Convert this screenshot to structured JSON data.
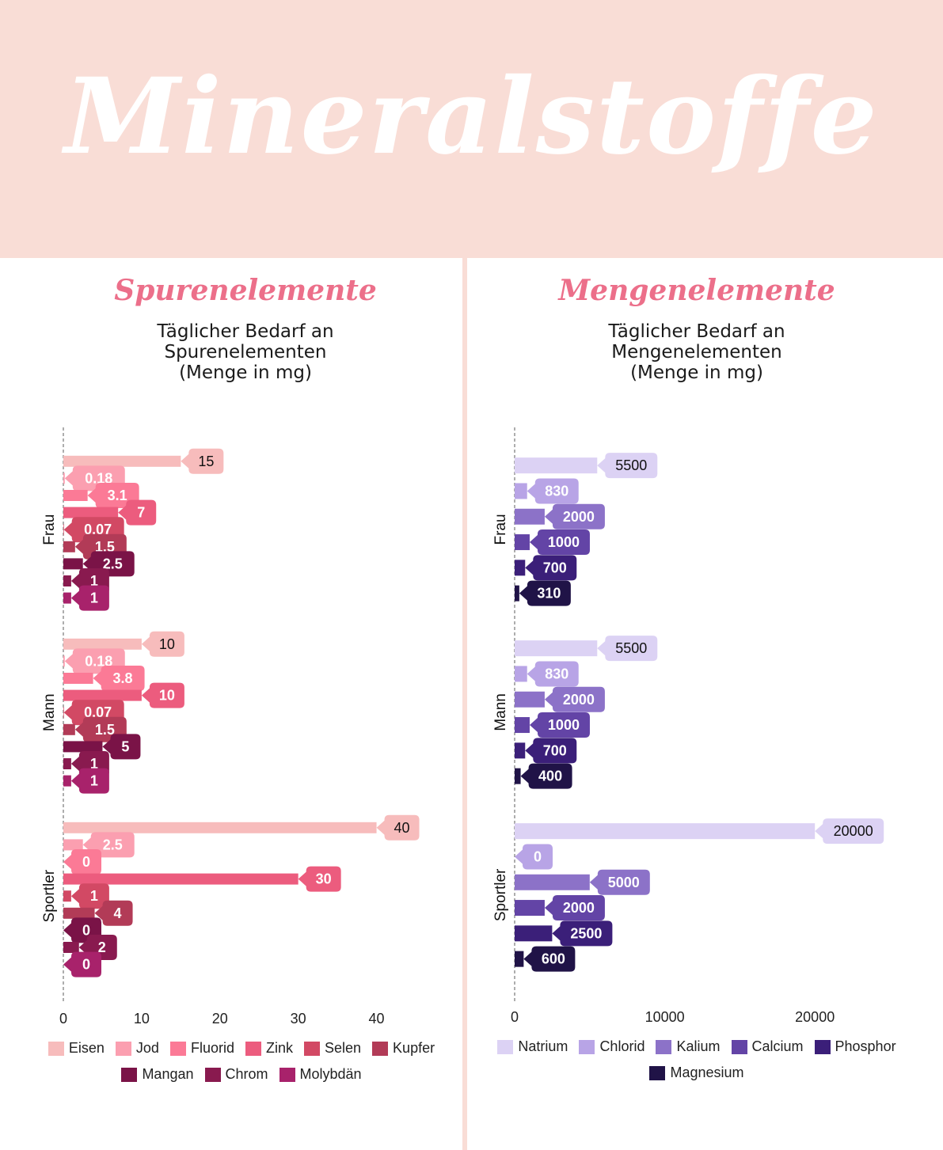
{
  "header": {
    "title": "Mineralstoffe"
  },
  "sections": [
    {
      "heading": "Spurenelemente",
      "title_lines": [
        "Täglicher Bedarf an",
        "Spurenelementen",
        "(Menge in mg)"
      ]
    },
    {
      "heading": "Mengenelemente",
      "title_lines": [
        "Täglicher Bedarf an",
        "Mengenelementen",
        "(Menge in mg)"
      ]
    }
  ],
  "chart_data": [
    {
      "type": "bar",
      "orientation": "horizontal",
      "groups": [
        "Frau",
        "Mann",
        "Sportler"
      ],
      "xlim": [
        0,
        45
      ],
      "xticks": [
        0,
        10,
        20,
        30,
        40
      ],
      "legend_position": "bottom",
      "series": [
        {
          "name": "Eisen",
          "color": "#f7bcbc",
          "values": [
            15,
            10,
            40
          ]
        },
        {
          "name": "Jod",
          "color": "#fb9fb0",
          "values": [
            0.18,
            0.18,
            2.5
          ]
        },
        {
          "name": "Fluorid",
          "color": "#fb7a96",
          "values": [
            3.1,
            3.8,
            0
          ]
        },
        {
          "name": "Zink",
          "color": "#ec5c7e",
          "values": [
            7,
            10,
            30
          ]
        },
        {
          "name": "Selen",
          "color": "#d24964",
          "values": [
            0.07,
            0.07,
            1
          ]
        },
        {
          "name": "Kupfer",
          "color": "#b23b57",
          "values": [
            1.5,
            1.5,
            4
          ]
        },
        {
          "name": "Mangan",
          "color": "#7a1347",
          "values": [
            2.5,
            5,
            0
          ]
        },
        {
          "name": "Chrom",
          "color": "#891a4f",
          "values": [
            1,
            1,
            2
          ]
        },
        {
          "name": "Molybdän",
          "color": "#a8226b",
          "values": [
            1,
            1,
            0
          ]
        }
      ]
    },
    {
      "type": "bar",
      "orientation": "horizontal",
      "groups": [
        "Frau",
        "Mann",
        "Sportler"
      ],
      "xlim": [
        0,
        25000
      ],
      "xticks": [
        0,
        10000,
        20000
      ],
      "legend_position": "bottom",
      "series": [
        {
          "name": "Natrium",
          "color": "#dcd2f4",
          "values": [
            5500,
            5500,
            20000
          ]
        },
        {
          "name": "Chlorid",
          "color": "#b8a4e6",
          "values": [
            830,
            830,
            0
          ]
        },
        {
          "name": "Kalium",
          "color": "#8c72c8",
          "values": [
            2000,
            2000,
            5000
          ]
        },
        {
          "name": "Calcium",
          "color": "#6344a6",
          "values": [
            1000,
            1000,
            2000
          ]
        },
        {
          "name": "Phosphor",
          "color": "#3b1f79",
          "values": [
            700,
            700,
            2500
          ]
        },
        {
          "name": "Magnesium",
          "color": "#201347",
          "values": [
            310,
            400,
            600
          ]
        }
      ]
    }
  ]
}
